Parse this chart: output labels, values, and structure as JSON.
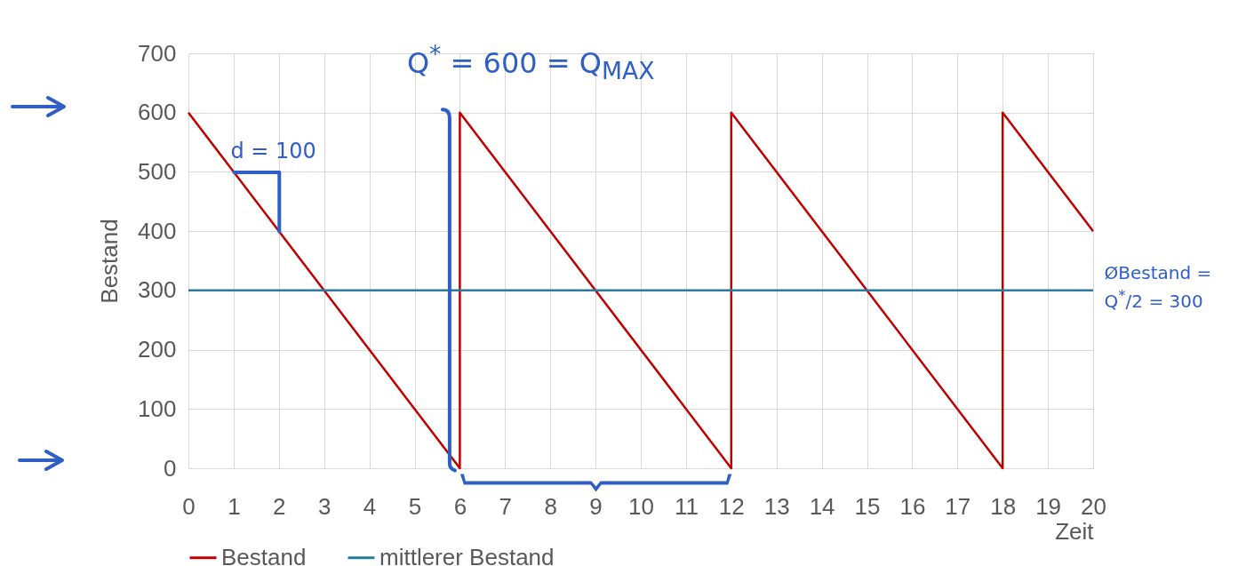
{
  "chart_data": {
    "type": "line",
    "xlabel": "Zeit",
    "ylabel": "Bestand",
    "xlim": [
      0,
      20
    ],
    "xticks": [
      0,
      1,
      2,
      3,
      4,
      5,
      6,
      7,
      8,
      9,
      10,
      11,
      12,
      13,
      14,
      15,
      16,
      17,
      18,
      19,
      20
    ],
    "ylim": [
      0,
      700
    ],
    "yticks": [
      0,
      100,
      200,
      300,
      400,
      500,
      600,
      700
    ],
    "grid": true,
    "legend": "bottom",
    "series": [
      {
        "name": "Bestand",
        "color": "#c00000",
        "x": [
          0,
          6,
          6,
          12,
          12,
          18,
          18,
          20
        ],
        "values": [
          600,
          0,
          600,
          0,
          600,
          0,
          600,
          400
        ]
      },
      {
        "name": "mittlerer Bestand",
        "color": "#2a7b9b",
        "x": [
          0,
          20
        ],
        "values": [
          300,
          300
        ]
      }
    ],
    "annotations": [
      {
        "text": "Q$^{*}$ = 600 = Q$_{MAX}$",
        "x": 6,
        "y": 600
      },
      {
        "text": "d = 100",
        "x": 1,
        "y": 500
      },
      {
        "text": "ØBestand = Q$^{*}$/2 = 300",
        "x": 20,
        "y": 300
      }
    ]
  }
}
